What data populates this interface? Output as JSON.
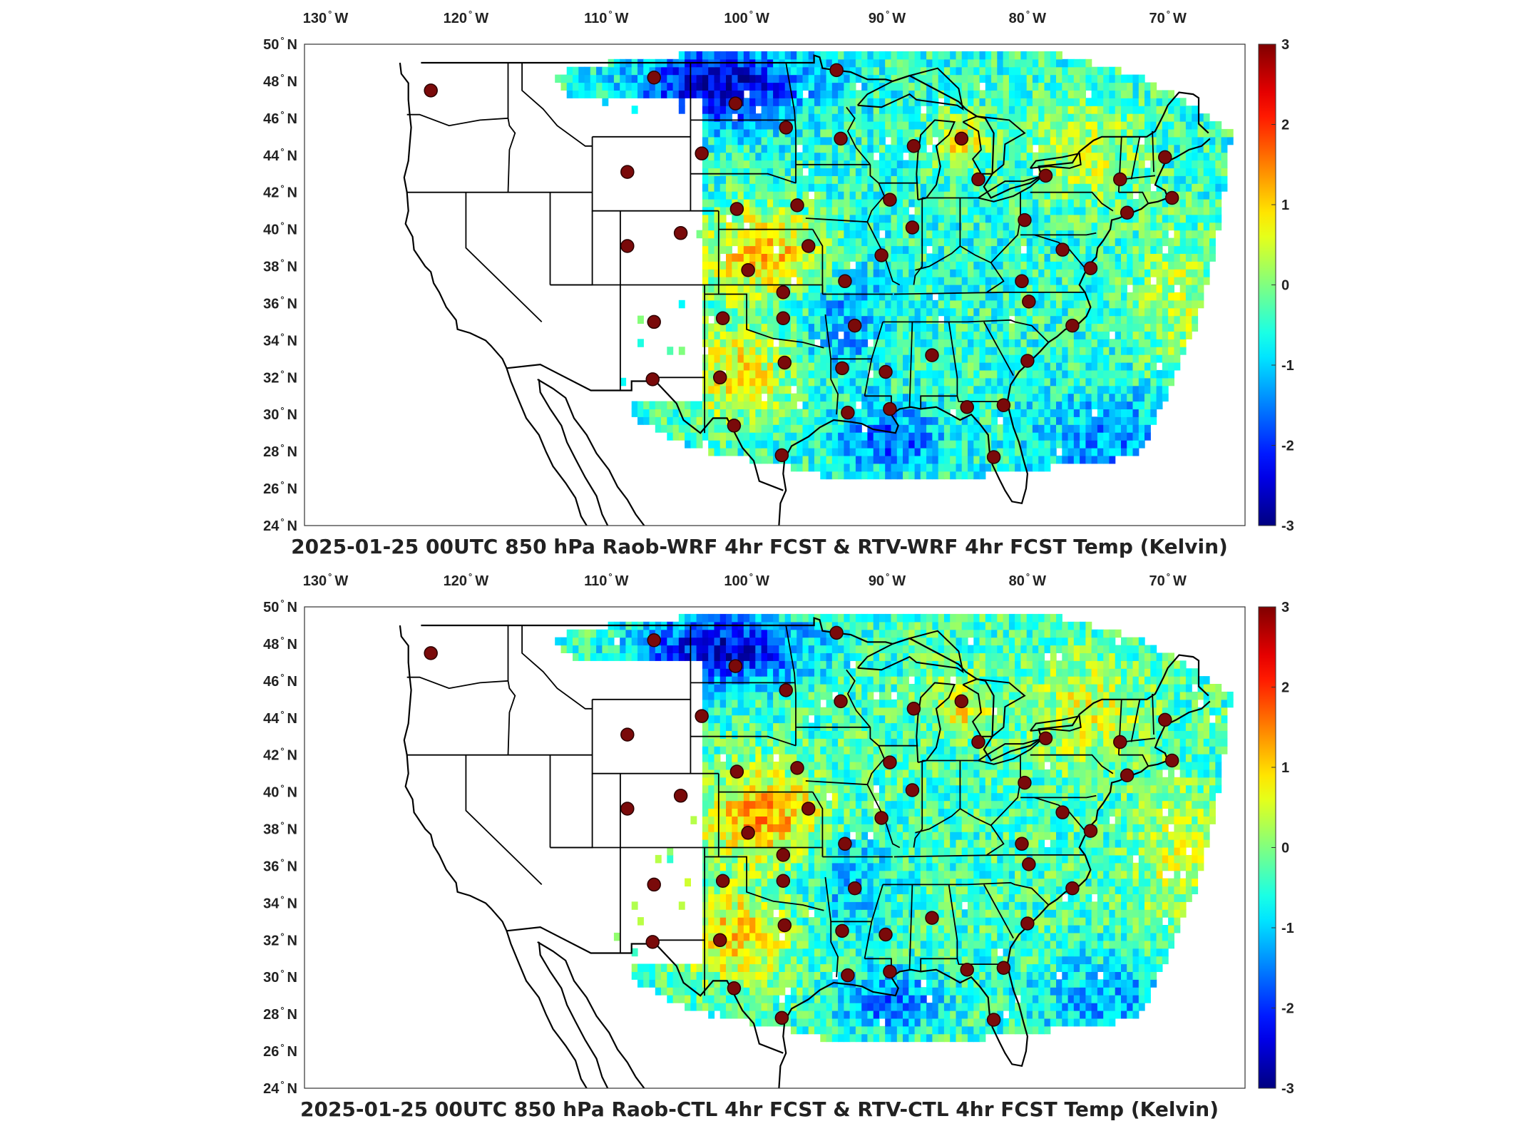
{
  "figure": {
    "panels": [
      {
        "title": "2025-01-25 00UTC 850 hPa Raob-WRF 4hr FCST & RTV-WRF 4hr FCST Temp (Kelvin)",
        "seed": 11,
        "warm_shift": 0.0
      },
      {
        "title": "2025-01-25 00UTC 850 hPa Raob-CTL 4hr FCST & RTV-CTL 4hr FCST Temp (Kelvin)",
        "seed": 29,
        "warm_shift": 0.15
      }
    ],
    "lon_ticks": [
      {
        "value": -130,
        "label": "130",
        "hemi": "W"
      },
      {
        "value": -120,
        "label": "120",
        "hemi": "W"
      },
      {
        "value": -110,
        "label": "110",
        "hemi": "W"
      },
      {
        "value": -100,
        "label": "100",
        "hemi": "W"
      },
      {
        "value": -90,
        "label": "90",
        "hemi": "W"
      },
      {
        "value": -80,
        "label": "80",
        "hemi": "W"
      },
      {
        "value": -70,
        "label": "70",
        "hemi": "W"
      }
    ],
    "lat_ticks": [
      {
        "value": 50,
        "label": "50",
        "hemi": "N"
      },
      {
        "value": 48,
        "label": "48",
        "hemi": "N"
      },
      {
        "value": 46,
        "label": "46",
        "hemi": "N"
      },
      {
        "value": 44,
        "label": "44",
        "hemi": "N"
      },
      {
        "value": 42,
        "label": "42",
        "hemi": "N"
      },
      {
        "value": 40,
        "label": "40",
        "hemi": "N"
      },
      {
        "value": 38,
        "label": "38",
        "hemi": "N"
      },
      {
        "value": 36,
        "label": "36",
        "hemi": "N"
      },
      {
        "value": 34,
        "label": "34",
        "hemi": "N"
      },
      {
        "value": 32,
        "label": "32",
        "hemi": "N"
      },
      {
        "value": 30,
        "label": "30",
        "hemi": "N"
      },
      {
        "value": 28,
        "label": "28",
        "hemi": "N"
      },
      {
        "value": 26,
        "label": "26",
        "hemi": "N"
      },
      {
        "value": 24,
        "label": "24",
        "hemi": "N"
      }
    ],
    "colorbar": {
      "min": -3,
      "max": 3,
      "ticks": [
        "3",
        "2",
        "1",
        "0",
        "-1",
        "-2",
        "-3"
      ],
      "colormap": "jet"
    },
    "raob_marker_color": "#7a0a0a",
    "map_extent": {
      "lon_min": -131.5,
      "lon_max": -64.5,
      "lat_min": 24,
      "lat_max": 50
    },
    "raob_stations": [
      {
        "lon": -122.5,
        "lat": 47.5
      },
      {
        "lon": -106.6,
        "lat": 48.2
      },
      {
        "lon": -100.8,
        "lat": 46.8
      },
      {
        "lon": -97.2,
        "lat": 45.5
      },
      {
        "lon": -93.6,
        "lat": 48.6
      },
      {
        "lon": -93.3,
        "lat": 44.9
      },
      {
        "lon": -103.2,
        "lat": 44.1
      },
      {
        "lon": -108.5,
        "lat": 43.1
      },
      {
        "lon": -100.7,
        "lat": 41.1
      },
      {
        "lon": -96.4,
        "lat": 41.3
      },
      {
        "lon": -89.8,
        "lat": 41.6
      },
      {
        "lon": -88.1,
        "lat": 44.5
      },
      {
        "lon": -84.7,
        "lat": 44.9
      },
      {
        "lon": -83.5,
        "lat": 42.7
      },
      {
        "lon": -78.7,
        "lat": 42.9
      },
      {
        "lon": -73.4,
        "lat": 42.7
      },
      {
        "lon": -70.2,
        "lat": 43.9
      },
      {
        "lon": -69.7,
        "lat": 41.7
      },
      {
        "lon": -72.9,
        "lat": 40.9
      },
      {
        "lon": -80.2,
        "lat": 40.5
      },
      {
        "lon": -77.5,
        "lat": 38.9
      },
      {
        "lon": -75.5,
        "lat": 37.9
      },
      {
        "lon": -80.4,
        "lat": 37.2
      },
      {
        "lon": -79.9,
        "lat": 36.1
      },
      {
        "lon": -76.8,
        "lat": 34.8
      },
      {
        "lon": -80.0,
        "lat": 32.9
      },
      {
        "lon": -81.7,
        "lat": 30.5
      },
      {
        "lon": -84.3,
        "lat": 30.4
      },
      {
        "lon": -82.4,
        "lat": 27.7
      },
      {
        "lon": -89.8,
        "lat": 30.3
      },
      {
        "lon": -86.8,
        "lat": 33.2
      },
      {
        "lon": -90.1,
        "lat": 32.3
      },
      {
        "lon": -92.3,
        "lat": 34.8
      },
      {
        "lon": -93.2,
        "lat": 32.5
      },
      {
        "lon": -92.8,
        "lat": 30.1
      },
      {
        "lon": -88.2,
        "lat": 40.1
      },
      {
        "lon": -90.4,
        "lat": 38.6
      },
      {
        "lon": -93.0,
        "lat": 37.2
      },
      {
        "lon": -95.6,
        "lat": 39.1
      },
      {
        "lon": -97.4,
        "lat": 36.6
      },
      {
        "lon": -97.4,
        "lat": 35.2
      },
      {
        "lon": -99.9,
        "lat": 37.8
      },
      {
        "lon": -101.7,
        "lat": 35.2
      },
      {
        "lon": -97.3,
        "lat": 32.8
      },
      {
        "lon": -101.9,
        "lat": 32.0
      },
      {
        "lon": -100.9,
        "lat": 29.4
      },
      {
        "lon": -97.5,
        "lat": 27.8
      },
      {
        "lon": -106.6,
        "lat": 35.0
      },
      {
        "lon": -106.7,
        "lat": 31.9
      },
      {
        "lon": -108.5,
        "lat": 39.1
      },
      {
        "lon": -104.7,
        "lat": 39.8
      }
    ]
  }
}
